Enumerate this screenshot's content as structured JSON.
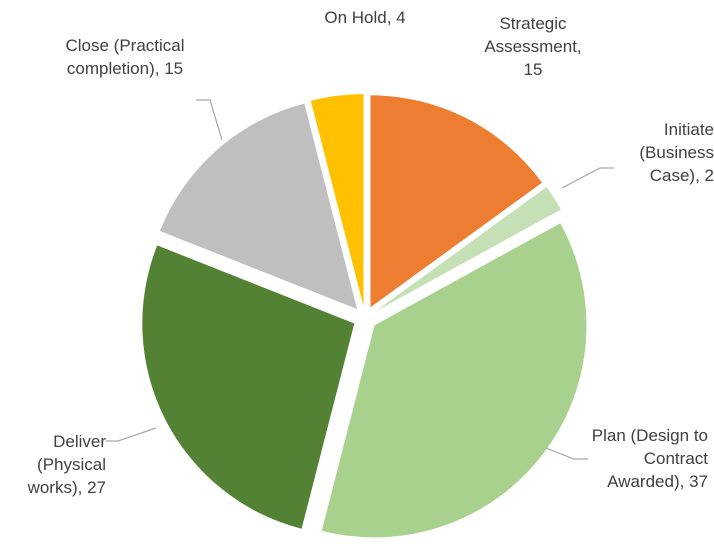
{
  "chart_data": {
    "type": "pie",
    "categories": [
      "Strategic Assessment",
      "Initiate (Business Case)",
      "Plan (Design to Contract Awarded)",
      "Deliver (Physical works)",
      "Close (Practical completion)",
      "On Hold"
    ],
    "values": [
      15,
      2,
      37,
      27,
      15,
      4
    ],
    "colors": [
      "#ed7d31",
      "#c5e0b4",
      "#a9d18e",
      "#548235",
      "#bfbfbf",
      "#ffc000"
    ],
    "label_separator": ", "
  }
}
